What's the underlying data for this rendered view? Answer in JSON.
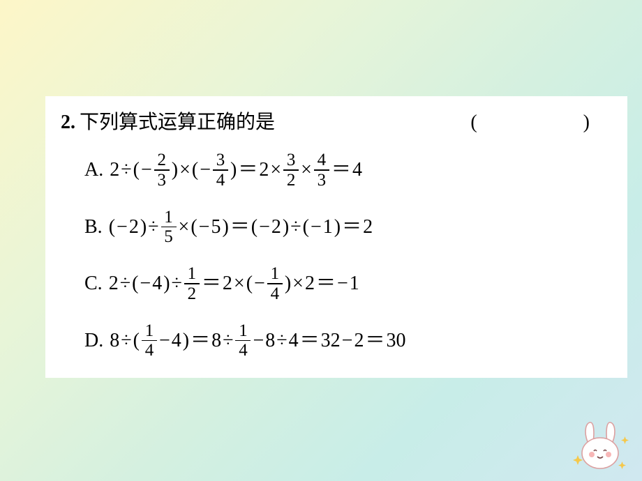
{
  "background": {
    "gradient_colors": [
      "#fdf6c8",
      "#e8f5d8",
      "#d4f0e0",
      "#c8ede8",
      "#d0e8f0"
    ],
    "panel_bg": "#ffffff",
    "text_color": "#000000"
  },
  "question": {
    "number": "2.",
    "text": "下列算式运算正确的是",
    "blank": "(　　)"
  },
  "options": {
    "A": {
      "label": "A.",
      "tokens": [
        "2",
        "÷",
        "(",
        "−",
        {
          "frac": [
            "2",
            "3"
          ]
        },
        ")",
        "×",
        "(",
        "−",
        {
          "frac": [
            "3",
            "4"
          ]
        },
        ")",
        "＝",
        "2",
        "×",
        {
          "frac": [
            "3",
            "2"
          ]
        },
        "×",
        {
          "frac": [
            "4",
            "3"
          ]
        },
        "＝",
        "4"
      ]
    },
    "B": {
      "label": "B.",
      "tokens": [
        "(",
        "−",
        "2",
        ")",
        "÷",
        {
          "frac": [
            "1",
            "5"
          ]
        },
        "×",
        "(",
        "−",
        "5",
        ")",
        "＝",
        "(",
        "−",
        "2",
        ")",
        "÷",
        "(",
        "−",
        "1",
        ")",
        "＝",
        "2"
      ]
    },
    "C": {
      "label": "C.",
      "tokens": [
        "2",
        "÷",
        "(",
        "−",
        "4",
        ")",
        "÷",
        {
          "frac": [
            "1",
            "2"
          ]
        },
        "＝",
        "2",
        "×",
        "(",
        "−",
        {
          "frac": [
            "1",
            "4"
          ]
        },
        ")",
        "×",
        "2",
        "＝",
        "−",
        "1"
      ]
    },
    "D": {
      "label": "D.",
      "tokens": [
        "8",
        "÷",
        "(",
        {
          "frac": [
            "1",
            "4"
          ]
        },
        "−",
        "4",
        ")",
        "＝",
        "8",
        "÷",
        {
          "frac": [
            "1",
            "4"
          ]
        },
        "−",
        "8",
        "÷",
        "4",
        "＝",
        "32",
        "−",
        "2",
        "＝",
        "30"
      ]
    }
  },
  "decoration": {
    "bunny": {
      "body_color": "#ffffff",
      "outline_color": "#dca0a0",
      "blush_color": "#f7b6b6",
      "sparkle_color": "#f5c84a"
    }
  }
}
